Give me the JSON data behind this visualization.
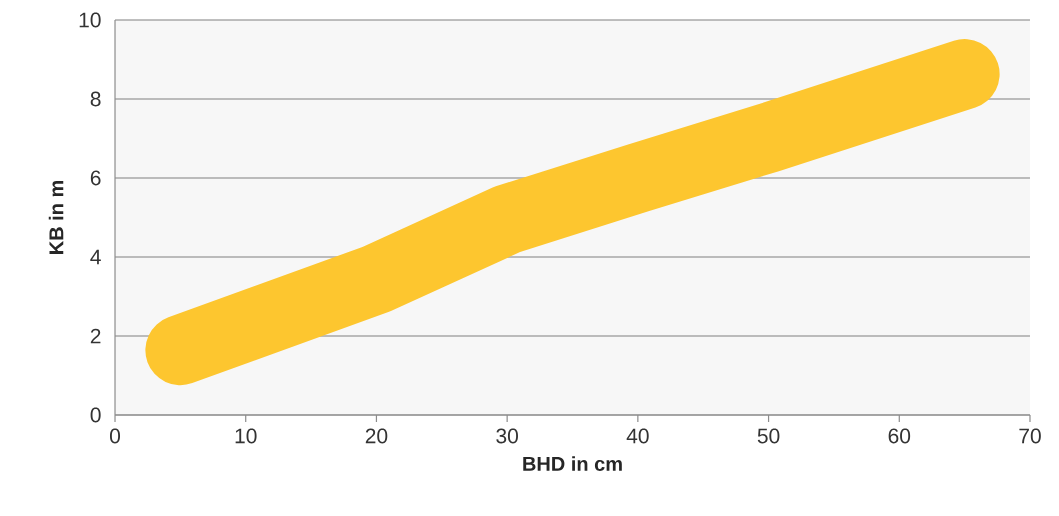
{
  "chart_data": {
    "type": "line",
    "xlabel": "BHD in cm",
    "ylabel": "KB in m",
    "x": [
      5,
      20,
      30,
      40,
      50,
      65
    ],
    "series": [
      {
        "color": "#fdc62f",
        "values": [
          1.64,
          3.44,
          4.95,
          6.0,
          7.02,
          8.63
        ]
      }
    ],
    "xlim": [
      0,
      70
    ],
    "ylim": [
      0,
      10
    ],
    "xticks": [
      0,
      10,
      20,
      30,
      40,
      50,
      60,
      70
    ],
    "yticks": [
      0,
      2,
      4,
      6,
      8,
      10
    ],
    "grid": "y",
    "marker": "none",
    "line_style": "solid",
    "legend": false
  }
}
